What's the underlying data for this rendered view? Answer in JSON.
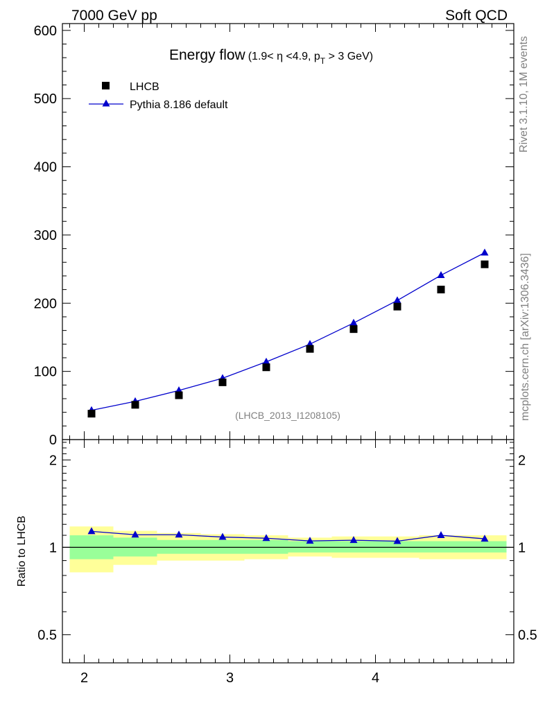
{
  "header": {
    "energy_label": "7000 GeV pp",
    "process_label": "Soft QCD"
  },
  "side_labels": {
    "rivet": "Rivet 3.1.10,  1M events",
    "mcplots": "mcplots.cern.ch [arXiv:1306.3436]"
  },
  "colors": {
    "mc_line": "#0000cc",
    "data_marker": "#000000",
    "band_inner": "#99ff99",
    "band_outer": "#ffff99"
  },
  "chart_data": [
    {
      "type": "scatter",
      "panel": "main",
      "title_main": "Energy flow",
      "title_sub_a": "(1.9< η <4.9, p",
      "title_sub_sub": "T",
      "title_sub_b": " > 3 GeV)",
      "analysis_label": "(LHCB_2013_I1208105)",
      "xlim": [
        1.85,
        4.95
      ],
      "ylim": [
        0,
        610
      ],
      "y_ticks": [
        0,
        100,
        200,
        300,
        400,
        500,
        600
      ],
      "y_tick_labels": [
        "0",
        "100",
        "200",
        "300",
        "400",
        "500",
        "600"
      ],
      "legend": [
        "LHCB",
        "Pythia 8.186 default"
      ],
      "legend_position": "top-left",
      "series": [
        {
          "name": "LHCB",
          "style": "square-marker",
          "x": [
            2.05,
            2.35,
            2.65,
            2.95,
            3.25,
            3.55,
            3.85,
            4.15,
            4.45,
            4.75
          ],
          "values": [
            38,
            51,
            65,
            84,
            106,
            133,
            162,
            195,
            220,
            257
          ]
        },
        {
          "name": "Pythia 8.186 default",
          "style": "line-triangle",
          "x": [
            2.05,
            2.35,
            2.65,
            2.95,
            3.25,
            3.55,
            3.85,
            4.15,
            4.45,
            4.75
          ],
          "values": [
            43,
            56,
            72,
            90,
            114,
            140,
            171,
            204,
            241,
            274
          ]
        }
      ]
    },
    {
      "type": "line",
      "panel": "ratio",
      "ylabel": "Ratio to LHCB",
      "scale": "log",
      "xlim": [
        1.85,
        4.95
      ],
      "ylim": [
        0.4,
        2.35
      ],
      "y_ticks": [
        0.5,
        1,
        2
      ],
      "y_tick_labels": [
        "0.5",
        "1",
        "2"
      ],
      "x_ticks": [
        2,
        3,
        4
      ],
      "x_tick_labels": [
        "2",
        "3",
        "4"
      ],
      "bins": [
        [
          1.9,
          2.2
        ],
        [
          2.2,
          2.5
        ],
        [
          2.5,
          2.8
        ],
        [
          2.8,
          3.1
        ],
        [
          3.1,
          3.4
        ],
        [
          3.4,
          3.7
        ],
        [
          3.7,
          4.0
        ],
        [
          4.0,
          4.3
        ],
        [
          4.3,
          4.6
        ],
        [
          4.6,
          4.9
        ]
      ],
      "band_outer": [
        [
          0.82,
          1.18
        ],
        [
          0.87,
          1.14
        ],
        [
          0.9,
          1.12
        ],
        [
          0.9,
          1.11
        ],
        [
          0.91,
          1.1
        ],
        [
          0.93,
          1.08
        ],
        [
          0.92,
          1.09
        ],
        [
          0.92,
          1.09
        ],
        [
          0.91,
          1.1
        ],
        [
          0.91,
          1.1
        ]
      ],
      "band_inner": [
        [
          0.91,
          1.1
        ],
        [
          0.93,
          1.08
        ],
        [
          0.95,
          1.06
        ],
        [
          0.95,
          1.06
        ],
        [
          0.95,
          1.06
        ],
        [
          0.96,
          1.05
        ],
        [
          0.96,
          1.05
        ],
        [
          0.96,
          1.05
        ],
        [
          0.96,
          1.05
        ],
        [
          0.96,
          1.05
        ]
      ],
      "series": [
        {
          "name": "Pythia 8.186 default",
          "x": [
            2.05,
            2.35,
            2.65,
            2.95,
            3.25,
            3.55,
            3.85,
            4.15,
            4.45,
            4.75
          ],
          "values": [
            1.135,
            1.105,
            1.105,
            1.085,
            1.075,
            1.052,
            1.058,
            1.05,
            1.1,
            1.07
          ]
        }
      ]
    }
  ]
}
